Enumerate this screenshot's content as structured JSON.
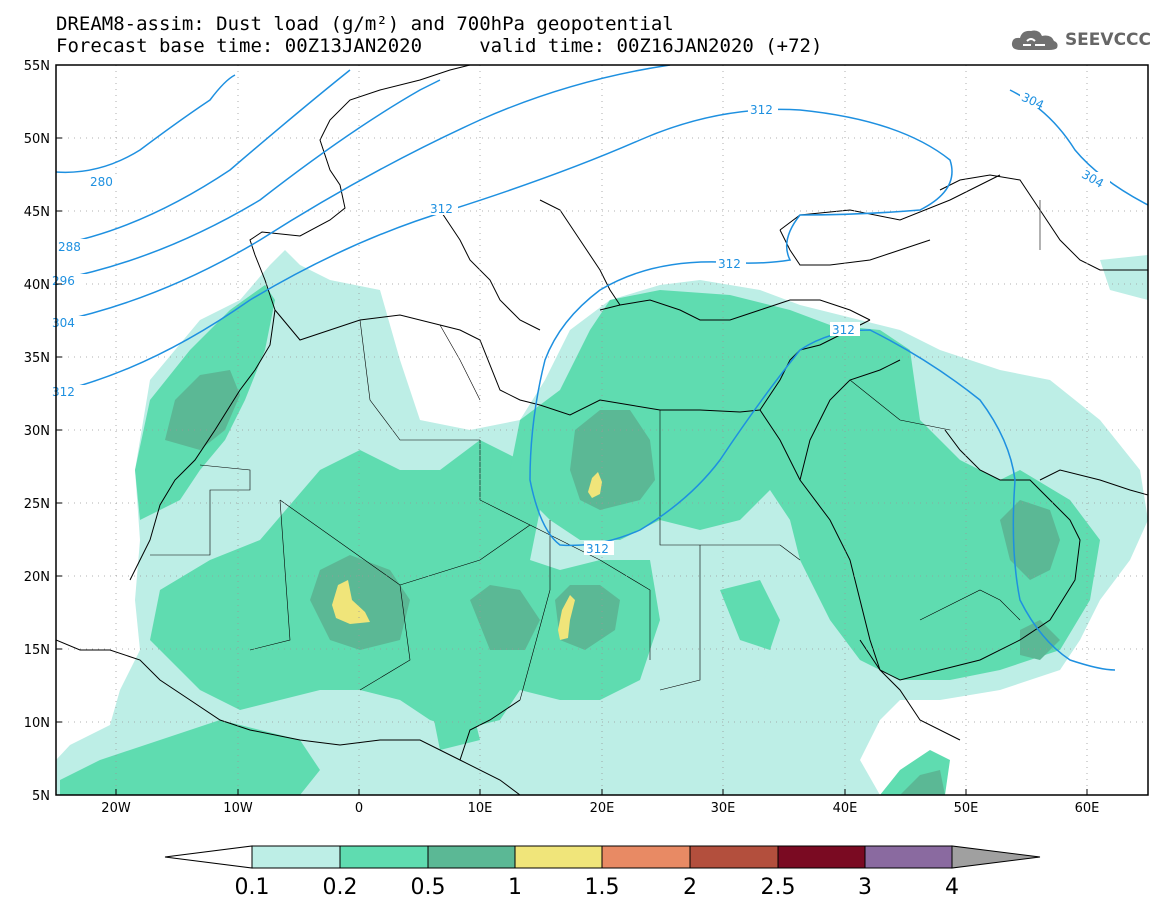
{
  "title": {
    "line1": "DREAM8-assim: Dust load (g/m²) and 700hPa geopotential",
    "line2": "Forecast base time: 00Z13JAN2020     valid time: 00Z16JAN2020 (+72)"
  },
  "logo": {
    "text": "SEEVCCC",
    "icon": "cloud-logo-icon"
  },
  "map": {
    "lon_range": [
      -25,
      65
    ],
    "lat_range": [
      5,
      55
    ],
    "lon_ticks": [
      "20W",
      "10W",
      "0",
      "10E",
      "20E",
      "30E",
      "40E",
      "50E",
      "60E"
    ],
    "lat_ticks": [
      "55N",
      "50N",
      "45N",
      "40N",
      "35N",
      "30N",
      "25N",
      "20N",
      "15N",
      "10N",
      "5N"
    ],
    "grid": "dotted"
  },
  "contours": {
    "color": "#1e90e0",
    "labels": [
      "280",
      "288",
      "296",
      "304",
      "312",
      "312",
      "312",
      "312",
      "312",
      "312",
      "304",
      "304"
    ]
  },
  "colorbar": {
    "labels": [
      "0.1",
      "0.2",
      "0.5",
      "1",
      "1.5",
      "2",
      "2.5",
      "3",
      "4"
    ],
    "colors": [
      "#bdeee6",
      "#5fdcb0",
      "#5bb895",
      "#f0e57a",
      "#e88a64",
      "#b34f3d",
      "#7a0a22",
      "#8a6aa0"
    ],
    "under_color": "#ffffff",
    "over_color": "#a0a0a0"
  }
}
